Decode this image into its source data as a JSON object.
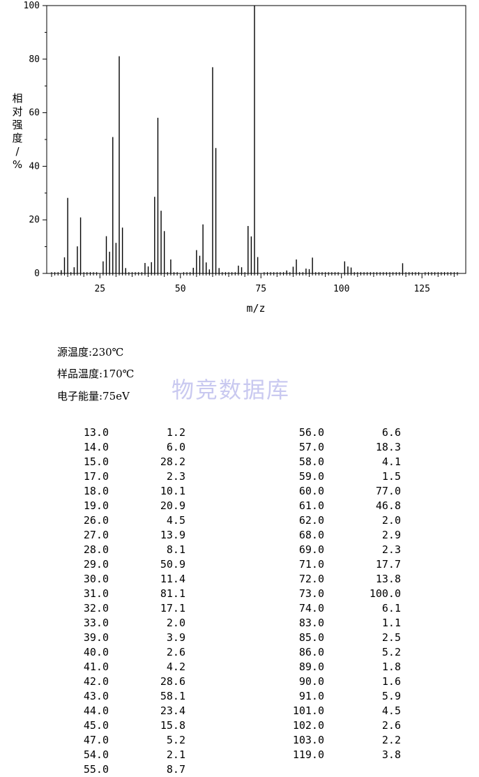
{
  "chart_data": {
    "type": "bar",
    "xlabel": "m/z",
    "ylabel": "相对强度/%",
    "xlim": [
      10,
      136
    ],
    "ylim": [
      0,
      100
    ],
    "xticks": [
      25,
      50,
      75,
      100,
      125
    ],
    "yticks": [
      0,
      20,
      40,
      60,
      80,
      100
    ],
    "peaks": [
      {
        "mz": 13.0,
        "intensity": 1.2
      },
      {
        "mz": 14.0,
        "intensity": 6.0
      },
      {
        "mz": 15.0,
        "intensity": 28.2
      },
      {
        "mz": 17.0,
        "intensity": 2.3
      },
      {
        "mz": 18.0,
        "intensity": 10.1
      },
      {
        "mz": 19.0,
        "intensity": 20.9
      },
      {
        "mz": 26.0,
        "intensity": 4.5
      },
      {
        "mz": 27.0,
        "intensity": 13.9
      },
      {
        "mz": 28.0,
        "intensity": 8.1
      },
      {
        "mz": 29.0,
        "intensity": 50.9
      },
      {
        "mz": 30.0,
        "intensity": 11.4
      },
      {
        "mz": 31.0,
        "intensity": 81.1
      },
      {
        "mz": 32.0,
        "intensity": 17.1
      },
      {
        "mz": 33.0,
        "intensity": 2.0
      },
      {
        "mz": 39.0,
        "intensity": 3.9
      },
      {
        "mz": 40.0,
        "intensity": 2.6
      },
      {
        "mz": 41.0,
        "intensity": 4.2
      },
      {
        "mz": 42.0,
        "intensity": 28.6
      },
      {
        "mz": 43.0,
        "intensity": 58.1
      },
      {
        "mz": 44.0,
        "intensity": 23.4
      },
      {
        "mz": 45.0,
        "intensity": 15.8
      },
      {
        "mz": 47.0,
        "intensity": 5.2
      },
      {
        "mz": 54.0,
        "intensity": 2.1
      },
      {
        "mz": 55.0,
        "intensity": 8.7
      },
      {
        "mz": 56.0,
        "intensity": 6.6
      },
      {
        "mz": 57.0,
        "intensity": 18.3
      },
      {
        "mz": 58.0,
        "intensity": 4.1
      },
      {
        "mz": 59.0,
        "intensity": 1.5
      },
      {
        "mz": 60.0,
        "intensity": 77.0
      },
      {
        "mz": 61.0,
        "intensity": 46.8
      },
      {
        "mz": 62.0,
        "intensity": 2.0
      },
      {
        "mz": 68.0,
        "intensity": 2.9
      },
      {
        "mz": 69.0,
        "intensity": 2.3
      },
      {
        "mz": 71.0,
        "intensity": 17.7
      },
      {
        "mz": 72.0,
        "intensity": 13.8
      },
      {
        "mz": 73.0,
        "intensity": 100.0
      },
      {
        "mz": 74.0,
        "intensity": 6.1
      },
      {
        "mz": 83.0,
        "intensity": 1.1
      },
      {
        "mz": 85.0,
        "intensity": 2.5
      },
      {
        "mz": 86.0,
        "intensity": 5.2
      },
      {
        "mz": 89.0,
        "intensity": 1.8
      },
      {
        "mz": 90.0,
        "intensity": 1.6
      },
      {
        "mz": 91.0,
        "intensity": 5.9
      },
      {
        "mz": 101.0,
        "intensity": 4.5
      },
      {
        "mz": 102.0,
        "intensity": 2.6
      },
      {
        "mz": 103.0,
        "intensity": 2.2
      },
      {
        "mz": 119.0,
        "intensity": 3.8
      }
    ]
  },
  "meta": {
    "source_temp": "源温度:230℃",
    "sample_temp": "样品温度:170℃",
    "electron_energy": "电子能量:75eV"
  },
  "watermark": "物竞数据库",
  "table": {
    "left": [
      [
        "13.0",
        "1.2"
      ],
      [
        "14.0",
        "6.0"
      ],
      [
        "15.0",
        "28.2"
      ],
      [
        "17.0",
        "2.3"
      ],
      [
        "18.0",
        "10.1"
      ],
      [
        "19.0",
        "20.9"
      ],
      [
        "26.0",
        "4.5"
      ],
      [
        "27.0",
        "13.9"
      ],
      [
        "28.0",
        "8.1"
      ],
      [
        "29.0",
        "50.9"
      ],
      [
        "30.0",
        "11.4"
      ],
      [
        "31.0",
        "81.1"
      ],
      [
        "32.0",
        "17.1"
      ],
      [
        "33.0",
        "2.0"
      ],
      [
        "39.0",
        "3.9"
      ],
      [
        "40.0",
        "2.6"
      ],
      [
        "41.0",
        "4.2"
      ],
      [
        "42.0",
        "28.6"
      ],
      [
        "43.0",
        "58.1"
      ],
      [
        "44.0",
        "23.4"
      ],
      [
        "45.0",
        "15.8"
      ],
      [
        "47.0",
        "5.2"
      ],
      [
        "54.0",
        "2.1"
      ],
      [
        "55.0",
        "8.7"
      ]
    ],
    "right": [
      [
        "56.0",
        "6.6"
      ],
      [
        "57.0",
        "18.3"
      ],
      [
        "58.0",
        "4.1"
      ],
      [
        "59.0",
        "1.5"
      ],
      [
        "60.0",
        "77.0"
      ],
      [
        "61.0",
        "46.8"
      ],
      [
        "62.0",
        "2.0"
      ],
      [
        "68.0",
        "2.9"
      ],
      [
        "69.0",
        "2.3"
      ],
      [
        "71.0",
        "17.7"
      ],
      [
        "72.0",
        "13.8"
      ],
      [
        "73.0",
        "100.0"
      ],
      [
        "74.0",
        "6.1"
      ],
      [
        "83.0",
        "1.1"
      ],
      [
        "85.0",
        "2.5"
      ],
      [
        "86.0",
        "5.2"
      ],
      [
        "89.0",
        "1.8"
      ],
      [
        "90.0",
        "1.6"
      ],
      [
        "91.0",
        "5.9"
      ],
      [
        "101.0",
        "4.5"
      ],
      [
        "102.0",
        "2.6"
      ],
      [
        "103.0",
        "2.2"
      ],
      [
        "119.0",
        "3.8"
      ]
    ]
  }
}
